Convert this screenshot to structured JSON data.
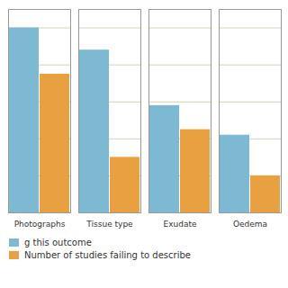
{
  "chart_data": {
    "type": "bar",
    "categories": [
      "Photographs",
      "Tissue type",
      "Exudate",
      "Oedema"
    ],
    "series": [
      {
        "name": "g this outcome",
        "color": "#7EB9D4",
        "values": [
          100,
          88,
          58,
          42
        ]
      },
      {
        "name": "Number of studies failing to describe",
        "color": "#E8A040",
        "values": [
          75,
          30,
          45,
          20
        ]
      }
    ],
    "ylim": [
      0,
      110
    ],
    "yticks": [
      20,
      40,
      60,
      80,
      100
    ],
    "grid": true,
    "tick_labels": "x",
    "legend": "lower left"
  }
}
